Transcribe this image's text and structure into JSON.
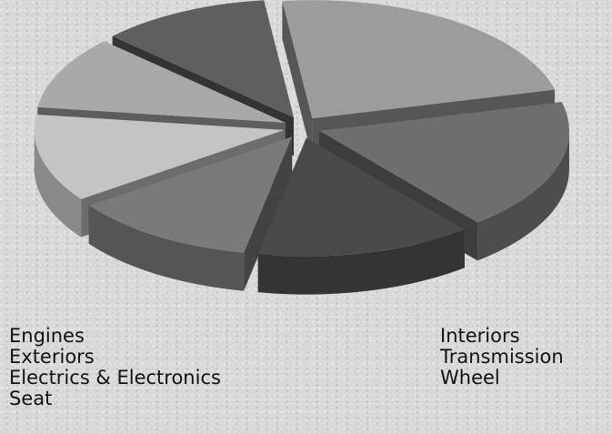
{
  "chart_data": {
    "type": "pie",
    "style": "3d-exploded",
    "categories": [
      "Engines",
      "Interiors",
      "Exteriors",
      "Transmission",
      "Electrics & Electronics",
      "Wheel",
      "Seat"
    ],
    "values": [
      23,
      18,
      14,
      12,
      12,
      10,
      11
    ],
    "colors": [
      "#9c9c9c",
      "#6e6e6e",
      "#4a4a4a",
      "#7a7a7a",
      "#c4c4c4",
      "#a9a9a9",
      "#5f5f5f"
    ],
    "legend": {
      "placement": "bottom",
      "columns": [
        [
          "Engines",
          "Exteriors",
          "Electrics & Electronics",
          "Seat"
        ],
        [
          "Interiors",
          "Transmission",
          "Wheel"
        ]
      ]
    }
  }
}
